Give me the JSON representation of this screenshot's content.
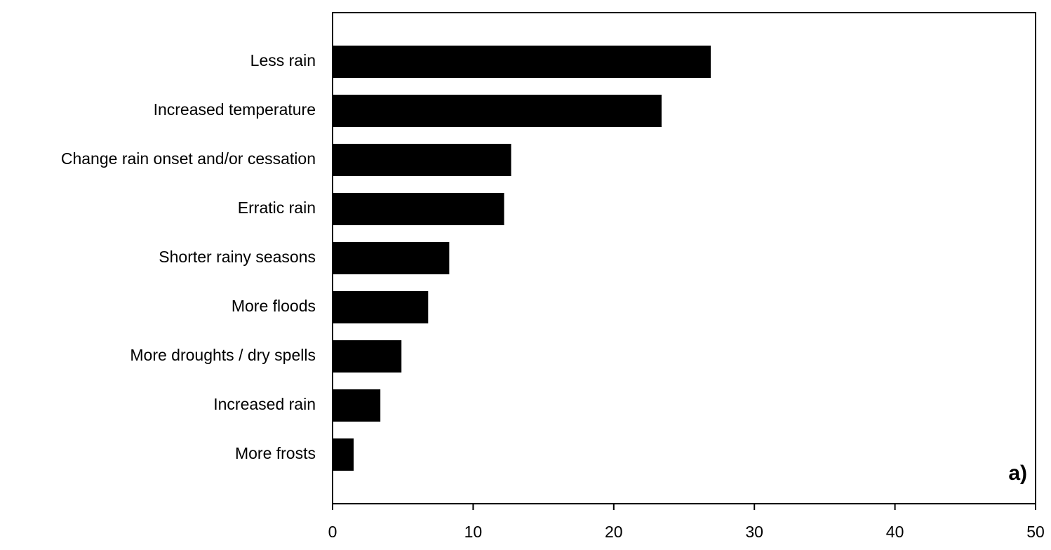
{
  "chart_data": {
    "type": "barh",
    "categories": [
      "Less rain",
      "Increased temperature",
      "Change rain onset and/or cessation",
      "Erratic rain",
      "Shorter rainy seasons",
      "More floods",
      "More droughts / dry spells",
      "Increased rain",
      "More frosts"
    ],
    "values": [
      26.9,
      23.4,
      12.7,
      12.2,
      8.3,
      6.8,
      4.9,
      3.4,
      1.5
    ],
    "color": "#000000",
    "xlim": [
      0,
      50
    ],
    "xticks": [
      0,
      10,
      20,
      30,
      40,
      50
    ],
    "annotation": "a)"
  }
}
